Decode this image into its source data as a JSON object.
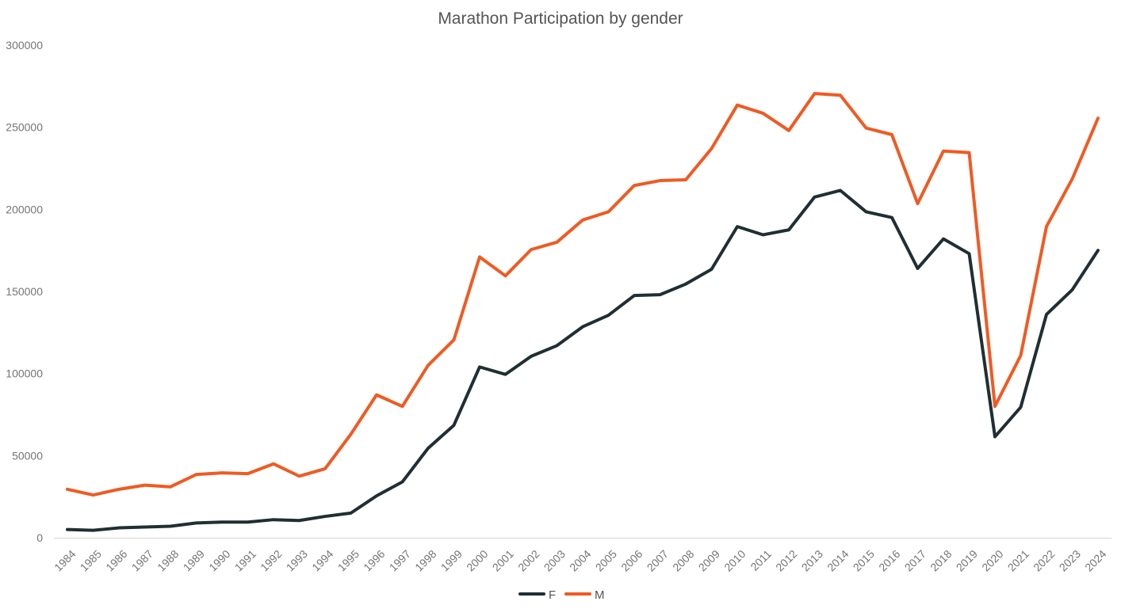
{
  "chart_data": {
    "type": "line",
    "title": "Marathon Participation by gender",
    "xlabel": "",
    "ylabel": "",
    "categories": [
      "1984",
      "1985",
      "1986",
      "1987",
      "1988",
      "1989",
      "1990",
      "1991",
      "1992",
      "1993",
      "1994",
      "1995",
      "1996",
      "1997",
      "1998",
      "1999",
      "2000",
      "2001",
      "2002",
      "2003",
      "2004",
      "2005",
      "2006",
      "2007",
      "2008",
      "2009",
      "2010",
      "2011",
      "2012",
      "2013",
      "2014",
      "2015",
      "2016",
      "2017",
      "2018",
      "2019",
      "2020",
      "2021",
      "2022",
      "2023",
      "2024"
    ],
    "ylim": [
      0,
      300000
    ],
    "yticks": [
      0,
      50000,
      100000,
      150000,
      200000,
      250000,
      300000
    ],
    "ytick_labels": [
      "0",
      "50000",
      "100000",
      "150000",
      "200000",
      "250000",
      "300000"
    ],
    "grid": false,
    "legend_position": "bottom-center",
    "series": [
      {
        "name": "F",
        "color": "#1f2f33",
        "values": [
          5000,
          4500,
          6000,
          6500,
          7000,
          9000,
          9500,
          9500,
          11000,
          10500,
          13000,
          15000,
          25500,
          34000,
          54500,
          68500,
          104000,
          99500,
          110500,
          117000,
          128500,
          135500,
          147500,
          148000,
          154500,
          163500,
          189500,
          184500,
          187500,
          207500,
          211500,
          198500,
          195000,
          164000,
          182000,
          173000,
          61500,
          79500,
          136000,
          151000,
          175000
        ]
      },
      {
        "name": "M",
        "color": "#f05a22",
        "values": [
          29500,
          26000,
          29500,
          32000,
          31000,
          38500,
          39500,
          39000,
          45000,
          37500,
          42000,
          63000,
          87000,
          80000,
          105000,
          120500,
          171000,
          159500,
          175500,
          180000,
          193500,
          198500,
          214500,
          217500,
          218000,
          237000,
          263500,
          258500,
          248000,
          270500,
          269500,
          249500,
          245500,
          203500,
          235500,
          234500,
          80000,
          111000,
          189500,
          218500,
          255500
        ]
      }
    ]
  }
}
